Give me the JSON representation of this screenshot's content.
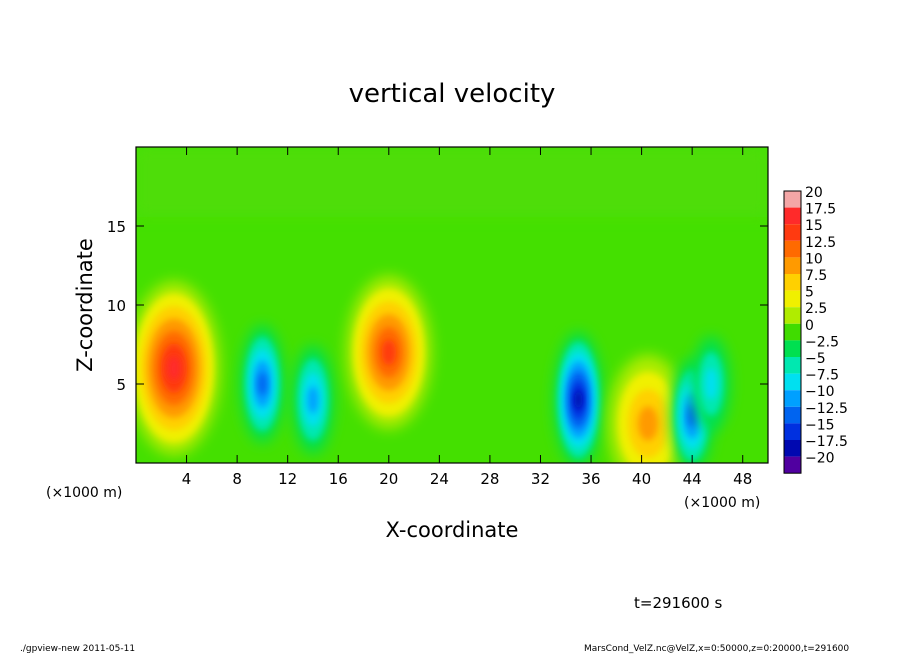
{
  "chart_data": {
    "type": "heatmap",
    "title": "vertical velocity",
    "xlabel": "X-coordinate",
    "ylabel": "Z-coordinate",
    "x_unit_label_left": "(×1000 m)",
    "x_unit_label_right": "(×1000 m)",
    "xlim": [
      0,
      50
    ],
    "ylim": [
      0,
      20
    ],
    "xticks": [
      4,
      8,
      12,
      16,
      20,
      24,
      28,
      32,
      36,
      40,
      44,
      48
    ],
    "yticks": [
      5,
      10,
      15
    ],
    "colorbar": {
      "labels": [
        "20",
        "17.5",
        "15",
        "12.5",
        "10",
        "7.5",
        "5",
        "2.5",
        "0",
        "−2.5",
        "−5",
        "−7.5",
        "−10",
        "−12.5",
        "−15",
        "−17.5",
        "−20"
      ],
      "levels": [
        20,
        17.5,
        15,
        12.5,
        10,
        7.5,
        5,
        2.5,
        0,
        -2.5,
        -5,
        -7.5,
        -10,
        -12.5,
        -15,
        -17.5,
        -20
      ],
      "colors": [
        "#f4a6a6",
        "#ff2a2a",
        "#ff3a10",
        "#ff6a00",
        "#ff9a00",
        "#ffd000",
        "#f0f000",
        "#b0ec00",
        "#40dc00",
        "#00e050",
        "#00e8b0",
        "#00e0f0",
        "#00a0ff",
        "#0064f0",
        "#0030e0",
        "#0008b0",
        "#5000a0"
      ]
    },
    "background_value_color": "#44e000",
    "features": [
      {
        "kind": "updraft",
        "x": 3,
        "z": 6,
        "peak": 18
      },
      {
        "kind": "downdraft",
        "x": 10,
        "z": 5,
        "peak": -13
      },
      {
        "kind": "downdraft",
        "x": 14,
        "z": 4,
        "peak": -11
      },
      {
        "kind": "updraft",
        "x": 20,
        "z": 7,
        "peak": 14
      },
      {
        "kind": "downdraft",
        "x": 35,
        "z": 4,
        "peak": -17
      },
      {
        "kind": "updraft",
        "x": 40.5,
        "z": 2.5,
        "peak": 11
      },
      {
        "kind": "downdraft",
        "x": 44,
        "z": 3,
        "peak": -12
      },
      {
        "kind": "downdraft",
        "x": 45.5,
        "z": 5,
        "peak": -8
      }
    ]
  },
  "time_label": "t=291600  s",
  "footer_left": "./gpview-new   2011-05-11",
  "footer_right": "MarsCond_VelZ.nc@VelZ,x=0:50000,z=0:20000,t=291600"
}
